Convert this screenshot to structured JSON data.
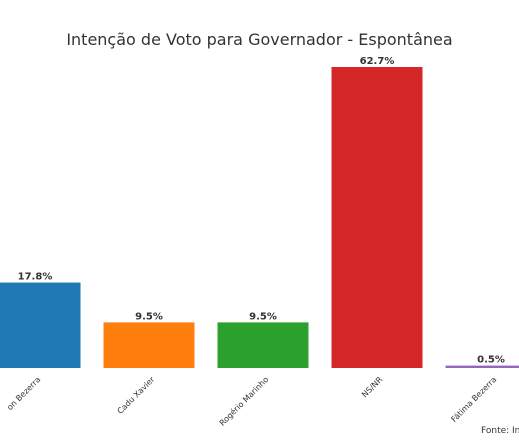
{
  "chart_data": {
    "type": "bar",
    "title": "Intenção de Voto para Governador - Espontânea",
    "categories": [
      "Styvenson Bezerra",
      "Cadu Xavier",
      "Rogério Marinho",
      "NS/NR",
      "Fátima Bezerra"
    ],
    "visible_tick_labels": [
      "on Bezerra",
      "Cadu Xavier",
      "Rogério Marinho",
      "NS/NR",
      "Fátima Bezerra"
    ],
    "values": [
      17.8,
      9.5,
      9.5,
      62.7,
      0.5
    ],
    "value_labels": [
      "17.8%",
      "9.5%",
      "9.5%",
      "62.7%",
      "0.5%"
    ],
    "colors": [
      "#1f77b4",
      "#ff7f0e",
      "#2ca02c",
      "#d62728",
      "#9467bd"
    ],
    "ylim": [
      0,
      62.7
    ],
    "grid": false,
    "xlabel": "",
    "ylabel": ""
  },
  "source_label": "Fonte: In"
}
